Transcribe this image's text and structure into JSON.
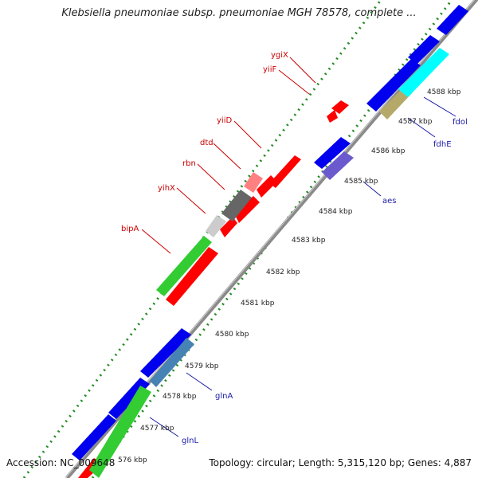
{
  "header": {
    "title": "Klebsiella pneumoniae subsp. pneumoniae MGH 78578, complete ..."
  },
  "footer": {
    "accession": "Accession: NC_009648",
    "summary": "Topology: circular; Length: 5,315,120 bp; Genes: 4,887"
  },
  "ticks": [
    {
      "label": "576 kbp"
    },
    {
      "label": "4577 kbp"
    },
    {
      "label": "4578 kbp"
    },
    {
      "label": "4579 kbp"
    },
    {
      "label": "4580 kbp"
    },
    {
      "label": "4581 kbp"
    },
    {
      "label": "4582 kbp"
    },
    {
      "label": "4583 kbp"
    },
    {
      "label": "4584 kbp"
    },
    {
      "label": "4585 kbp"
    },
    {
      "label": "4586 kbp"
    },
    {
      "label": "4587 kbp"
    },
    {
      "label": "4588 kbp"
    }
  ],
  "gene_labels": {
    "forward": [
      "ygiX",
      "yiiF",
      "yiiD",
      "dtd",
      "rbn",
      "yihX",
      "bipA"
    ],
    "reverse": [
      "fdol",
      "fdhE",
      "aes",
      "glnA",
      "glnL"
    ]
  },
  "colors": {
    "forward_gene": "#ff0000",
    "reverse_gene": "#0000ee",
    "cog_green": "#33cc33",
    "cog_cyan": "#00ffff",
    "cog_khaki": "#b5a96a",
    "cog_steelblue": "#4682b4",
    "cog_purple": "#6a5acd",
    "cog_grey": "#666666",
    "cog_lightgrey": "#cccccc",
    "cog_pink": "#ff8080",
    "backbone": "#808080",
    "dots": "#228b22"
  }
}
